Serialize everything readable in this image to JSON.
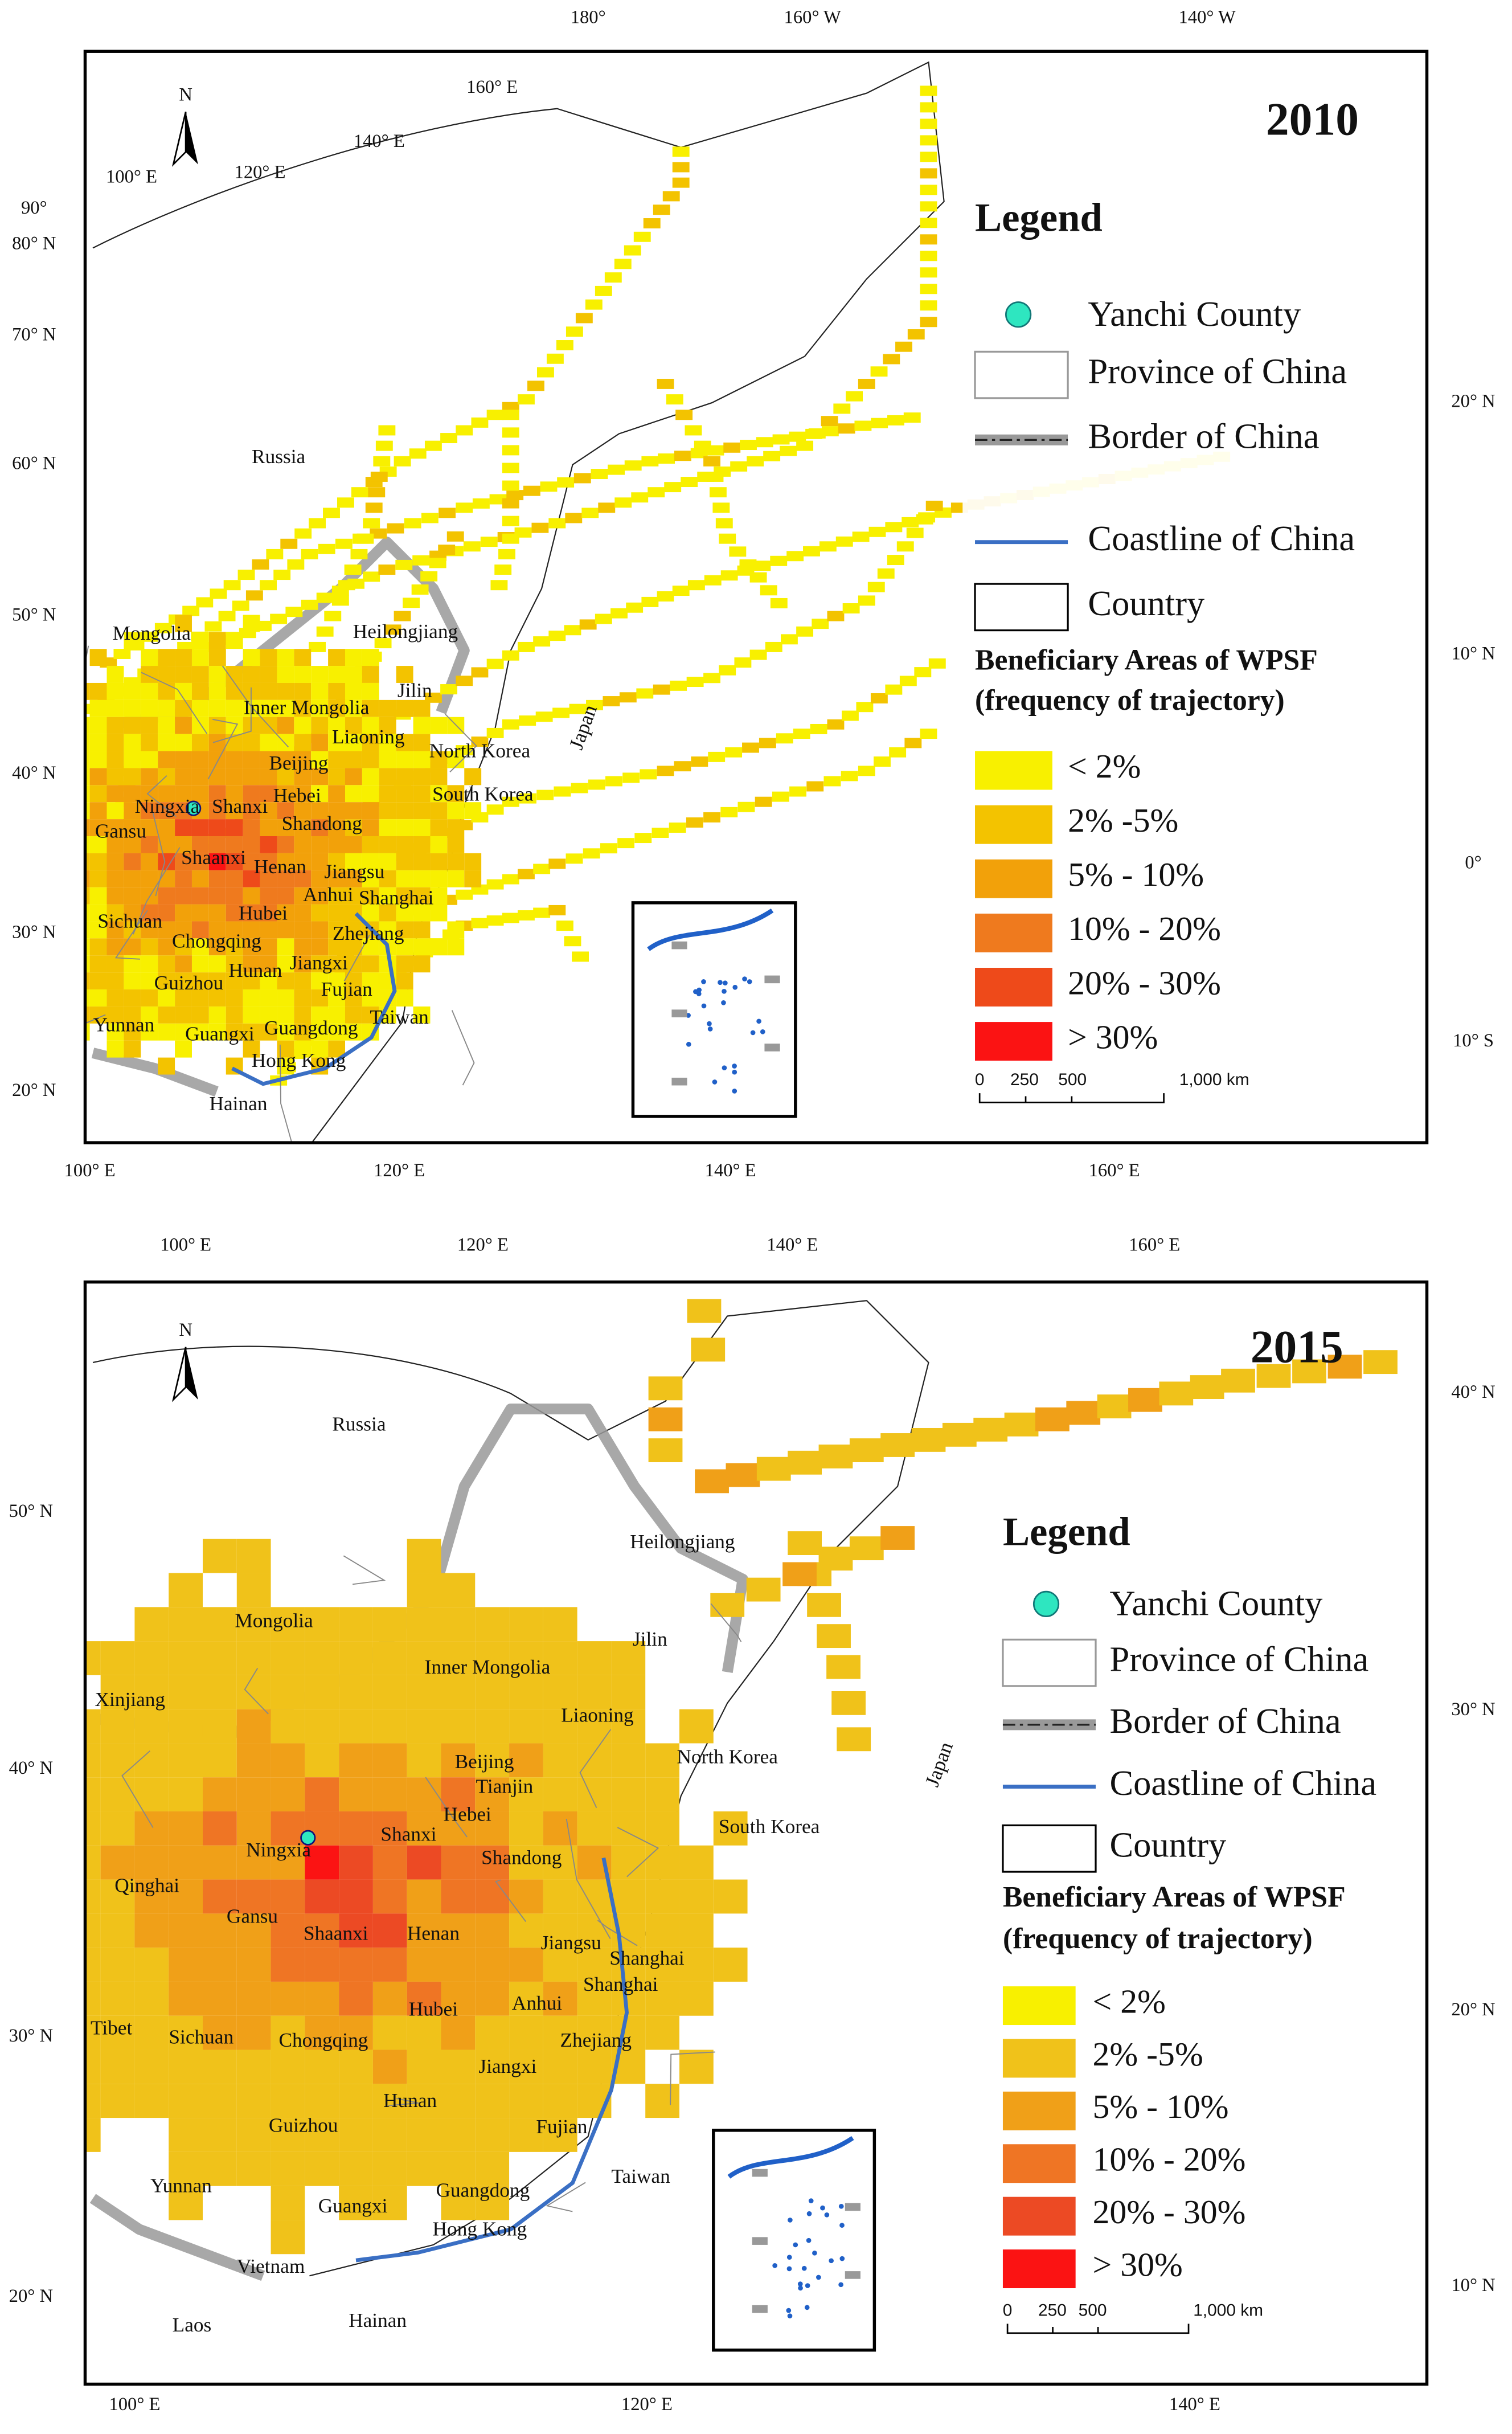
{
  "maps": [
    {
      "year": "2010",
      "north": "N",
      "top_labels": [
        "180°",
        "160° W",
        "140° W"
      ],
      "bottom_labels": [
        "100° E",
        "120° E",
        "140° E",
        "160° E"
      ],
      "left_labels": [
        "90°",
        "80° N",
        "70° N",
        "60° N",
        "50° N",
        "40° N",
        "30° N",
        "20° N"
      ],
      "right_labels": [
        "20° N",
        "10° N",
        "0°",
        "10° S"
      ],
      "inner_labels": [
        "100° E",
        "120° E",
        "140° E",
        "160° E"
      ],
      "places": [
        "Russia",
        "Mongolia",
        "Heilongjiang",
        "Jilin",
        "Inner Mongolia",
        "Liaoning",
        "North Korea",
        "Beijing",
        "Hebei",
        "Japan",
        "South Korea",
        "Shandong",
        "Ningxia",
        "Shanxi",
        "Gansu",
        "Shaanxi",
        "Jiangsu",
        "Henan",
        "Anhui",
        "Shanghai",
        "Sichuan",
        "Hubei",
        "Chongqing",
        "Zhejiang",
        "Hunan",
        "Jiangxi",
        "Guizhou",
        "Fujian",
        "Taiwan",
        "Yunnan",
        "Guangxi",
        "Guangdong",
        "Hong Kong",
        "Hainan"
      ],
      "legend": {
        "title": "Legend",
        "items": [
          "Yanchi County",
          "Province of China",
          "Border of China",
          "Coastline of China",
          "Country"
        ],
        "subtitle": [
          "Beneficiary Areas of WPSF",
          "(frequency of trajectory)"
        ],
        "classes": [
          {
            "label": "< 2%",
            "color": "#f8f000"
          },
          {
            "label": "2% -5%",
            "color": "#f3c300"
          },
          {
            "label": "5% - 10%",
            "color": "#f2a10a"
          },
          {
            "label": "10% - 20%",
            "color": "#ef7a1e"
          },
          {
            "label": "20% - 30%",
            "color": "#ee4a1a"
          },
          {
            "label": "> 30%",
            "color": "#fb1313"
          }
        ]
      },
      "scale": [
        "0",
        "250",
        "500",
        "1,000 km"
      ]
    },
    {
      "year": "2015",
      "north": "N",
      "top_labels": [
        "100° E",
        "120° E",
        "140° E",
        "160° E"
      ],
      "bottom_labels": [
        "100° E",
        "120° E",
        "140° E"
      ],
      "left_labels": [
        "50° N",
        "40° N",
        "30° N",
        "20° N"
      ],
      "right_labels": [
        "40° N",
        "30° N",
        "20° N",
        "10° N"
      ],
      "inner_labels": [],
      "places": [
        "Russia",
        "Heilongjiang",
        "Mongolia",
        "Jilin",
        "Inner Mongolia",
        "Xinjiang",
        "Liaoning",
        "North Korea",
        "Beijing",
        "Tianjin",
        "Japan",
        "Hebei",
        "South Korea",
        "Ningxia",
        "Shanxi",
        "Shandong",
        "Qinghai",
        "Gansu",
        "Shaanxi",
        "Henan",
        "Jiangsu",
        "Shanghai",
        "Shanghai",
        "Anhui",
        "Hubei",
        "Zhejiang",
        "Tibet",
        "Sichuan",
        "Chongqing",
        "Jiangxi",
        "Hunan",
        "Fujian",
        "Guizhou",
        "Taiwan",
        "Yunnan",
        "Guangdong",
        "Guangxi",
        "Hong Kong",
        "Vietnam",
        "Hainan",
        "Laos"
      ],
      "legend": {
        "title": "Legend",
        "items": [
          "Yanchi County",
          "Province of China",
          "Border of China",
          "Coastline of China",
          "Country"
        ],
        "subtitle": [
          "Beneficiary Areas of WPSF",
          "(frequency of trajectory)"
        ],
        "classes": [
          {
            "label": "< 2%",
            "color": "#f8f000"
          },
          {
            "label": "2% -5%",
            "color": "#f0c21a"
          },
          {
            "label": "5% - 10%",
            "color": "#f0a018"
          },
          {
            "label": "10% - 20%",
            "color": "#ef7524"
          },
          {
            "label": "20% - 30%",
            "color": "#ec4a24"
          },
          {
            "label": "> 30%",
            "color": "#fb1313"
          }
        ]
      },
      "scale": [
        "0",
        "250",
        "500",
        "1,000 km"
      ]
    }
  ]
}
